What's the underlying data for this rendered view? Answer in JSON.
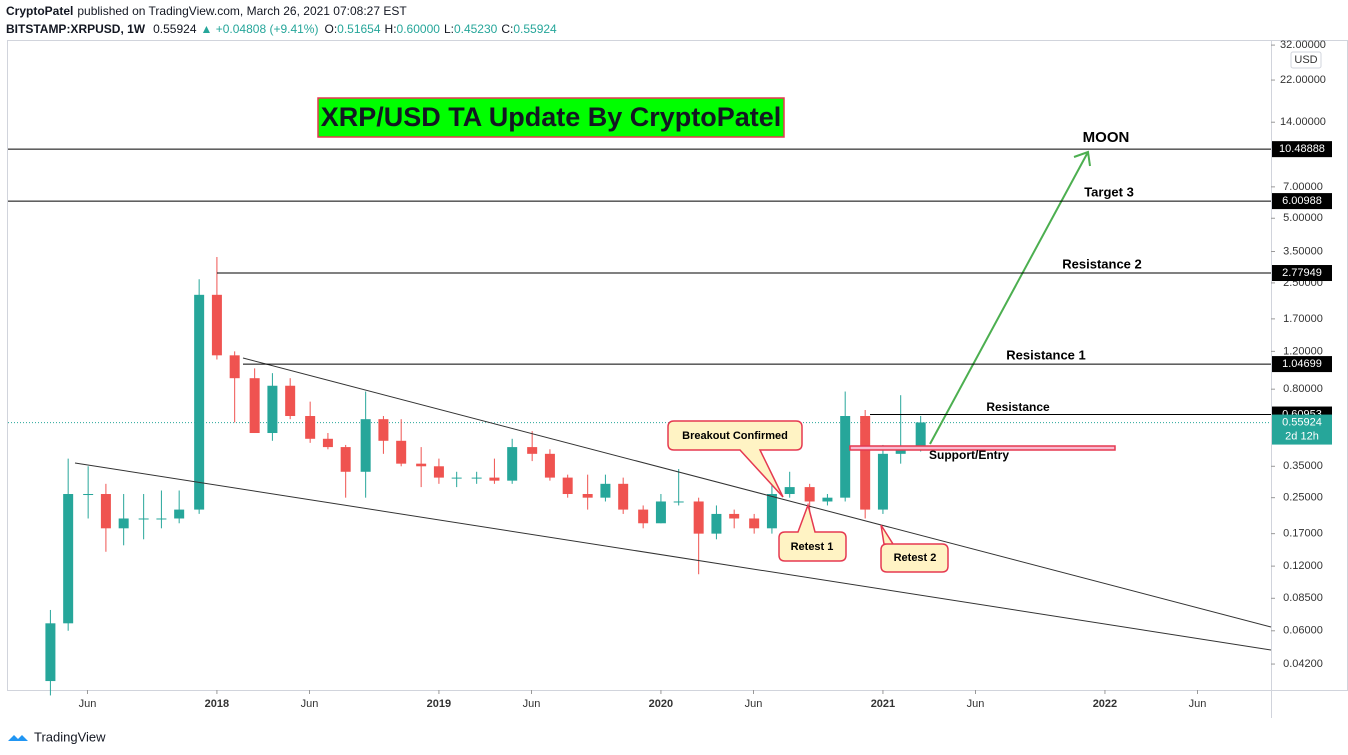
{
  "header": {
    "author": "CryptoPatel",
    "published": "published on TradingView.com, March 26, 2021 07:08:27 EST",
    "symbol": "BITSTAMP:XRPUSD, 1W",
    "last": "0.55924",
    "change": "▲ +0.04808 (+9.41%)",
    "ohlc": [
      {
        "label": "O:",
        "value": "0.51654"
      },
      {
        "label": "H:",
        "value": "0.60000"
      },
      {
        "label": "L:",
        "value": "0.45230"
      },
      {
        "label": "C:",
        "value": "0.55924"
      }
    ]
  },
  "chart_data": {
    "type": "candlestick",
    "currency": "USD",
    "log_scale": true,
    "up_color": "#26a69a",
    "down_color": "#ef5350",
    "title": "XRP/USD TA Update By CryptoPatel",
    "annotations": [
      "MOON",
      "Target 3",
      "Resistance 2",
      "Resistance 1",
      "Resistance",
      "Support/Entry",
      "Breakout Confirmed",
      "Retest 1",
      "Retest 2"
    ],
    "x": [
      2017.25,
      2017.33,
      2017.42,
      2017.5,
      2017.58,
      2017.67,
      2017.75,
      2017.83,
      2017.92,
      2018.0,
      2018.08,
      2018.17,
      2018.25,
      2018.33,
      2018.42,
      2018.5,
      2018.58,
      2018.67,
      2018.75,
      2018.83,
      2018.92,
      2019.0,
      2019.08,
      2019.17,
      2019.25,
      2019.33,
      2019.42,
      2019.5,
      2019.58,
      2019.67,
      2019.75,
      2019.83,
      2019.92,
      2020.0,
      2020.08,
      2020.17,
      2020.25,
      2020.33,
      2020.42,
      2020.5,
      2020.58,
      2020.67,
      2020.75,
      2020.83,
      2020.92,
      2021.0,
      2021.08,
      2021.17
    ],
    "open": [
      0.035,
      0.065,
      0.26,
      0.26,
      0.18,
      0.2,
      0.2,
      0.2,
      0.22,
      2.2,
      1.15,
      0.9,
      0.5,
      0.83,
      0.6,
      0.47,
      0.43,
      0.33,
      0.58,
      0.46,
      0.36,
      0.35,
      0.31,
      0.31,
      0.31,
      0.3,
      0.43,
      0.4,
      0.31,
      0.26,
      0.25,
      0.29,
      0.22,
      0.19,
      0.24,
      0.24,
      0.17,
      0.21,
      0.2,
      0.18,
      0.26,
      0.28,
      0.24,
      0.25,
      0.6,
      0.22,
      0.4,
      0.43
    ],
    "high": [
      0.075,
      0.38,
      0.35,
      0.29,
      0.26,
      0.26,
      0.27,
      0.27,
      2.6,
      3.3,
      1.2,
      1.0,
      0.95,
      0.9,
      0.7,
      0.5,
      0.44,
      0.78,
      0.6,
      0.58,
      0.43,
      0.38,
      0.33,
      0.33,
      0.38,
      0.47,
      0.51,
      0.42,
      0.32,
      0.32,
      0.32,
      0.31,
      0.23,
      0.26,
      0.34,
      0.25,
      0.23,
      0.22,
      0.21,
      0.32,
      0.33,
      0.29,
      0.26,
      0.78,
      0.64,
      0.44,
      0.75,
      0.6
    ],
    "low": [
      0.03,
      0.06,
      0.2,
      0.14,
      0.15,
      0.16,
      0.18,
      0.19,
      0.21,
      1.1,
      0.56,
      0.5,
      0.46,
      0.58,
      0.45,
      0.42,
      0.25,
      0.25,
      0.4,
      0.35,
      0.28,
      0.29,
      0.28,
      0.29,
      0.29,
      0.29,
      0.37,
      0.3,
      0.25,
      0.22,
      0.24,
      0.21,
      0.18,
      0.19,
      0.23,
      0.11,
      0.16,
      0.18,
      0.17,
      0.17,
      0.25,
      0.21,
      0.23,
      0.24,
      0.2,
      0.21,
      0.36,
      0.41
    ],
    "close": [
      0.065,
      0.26,
      0.26,
      0.18,
      0.2,
      0.2,
      0.2,
      0.22,
      2.2,
      1.15,
      0.9,
      0.5,
      0.83,
      0.6,
      0.47,
      0.43,
      0.33,
      0.58,
      0.46,
      0.36,
      0.35,
      0.31,
      0.31,
      0.31,
      0.3,
      0.43,
      0.4,
      0.31,
      0.26,
      0.25,
      0.29,
      0.22,
      0.19,
      0.24,
      0.24,
      0.17,
      0.21,
      0.2,
      0.18,
      0.26,
      0.28,
      0.24,
      0.25,
      0.6,
      0.22,
      0.4,
      0.43,
      0.56
    ],
    "levels": [
      10.48888,
      6.00988,
      2.77949,
      1.04699,
      0.60953
    ],
    "last_price": 0.55924,
    "countdown": "2d 12h",
    "xlim": [
      2017.059,
      2022.748
    ],
    "xticks": [
      {
        "value": 2017.417,
        "label": "Jun"
      },
      2018,
      {
        "value": 2018.417,
        "label": "Jun"
      },
      2019,
      {
        "value": 2019.417,
        "label": "Jun"
      },
      2020,
      {
        "value": 2020.417,
        "label": "Jun"
      },
      2021,
      {
        "value": 2021.417,
        "label": "Jun"
      },
      2022,
      {
        "value": 2022.417,
        "label": "Jun"
      }
    ],
    "ylim": [
      0.0318,
      33.8
    ],
    "yticks": [
      {
        "value": 32,
        "label": "32.00000"
      },
      {
        "value": 22,
        "label": "22.00000"
      },
      {
        "value": 14,
        "label": "14.00000"
      },
      {
        "value": 7,
        "label": "7.00000"
      },
      {
        "value": 5,
        "label": "5.00000"
      },
      {
        "value": 3.5,
        "label": "3.50000"
      },
      {
        "value": 2.5,
        "label": "2.50000"
      },
      {
        "value": 1.7,
        "label": "1.70000"
      },
      {
        "value": 1.2,
        "label": "1.20000"
      },
      {
        "value": 0.8,
        "label": "0.80000"
      },
      {
        "value": 0.35,
        "label": "0.35000"
      },
      {
        "value": 0.25,
        "label": "0.25000"
      },
      {
        "value": 0.17,
        "label": "0.17000"
      },
      {
        "value": 0.12,
        "label": "0.12000"
      },
      {
        "value": 0.085,
        "label": "0.08500"
      },
      {
        "value": 0.06,
        "label": "0.06000"
      },
      {
        "value": 0.042,
        "label": "0.04200"
      }
    ]
  },
  "footer": {
    "brand": "TradingView"
  }
}
